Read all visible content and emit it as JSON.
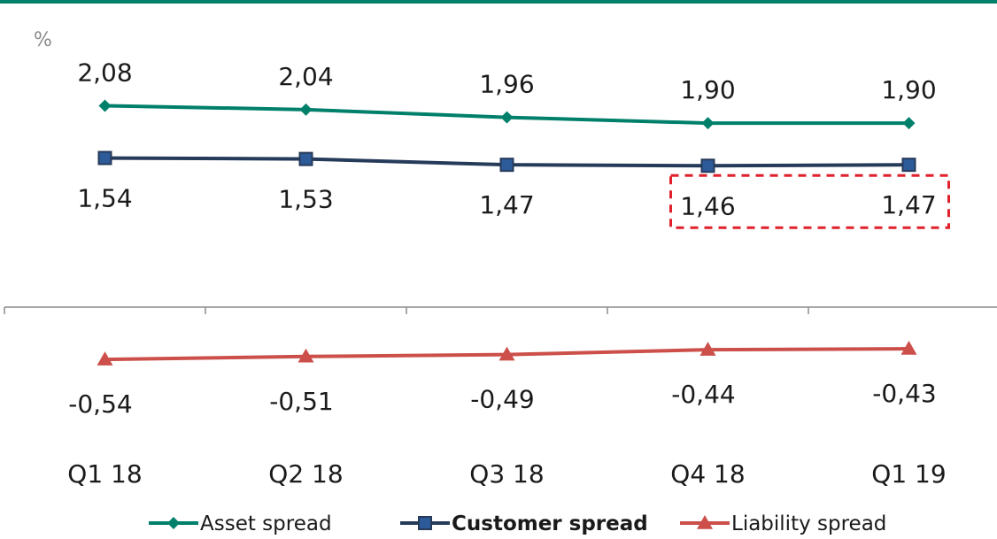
{
  "chart_data": {
    "type": "line",
    "unit_label": "%",
    "categories": [
      "Q1 18",
      "Q2 18",
      "Q3 18",
      "Q4 18",
      "Q1 19"
    ],
    "ylim": [
      -0.8,
      2.5
    ],
    "grid": false,
    "legend_position": "bottom",
    "series": [
      {
        "name": "Asset spread",
        "values": [
          2.08,
          2.04,
          1.96,
          1.9,
          1.9
        ],
        "labels": [
          "2,08",
          "2,04",
          "1,96",
          "1,90",
          "1,90"
        ],
        "color": "#00806a",
        "marker": "diamond",
        "label_position": "above"
      },
      {
        "name": "Customer spread",
        "values": [
          1.54,
          1.53,
          1.47,
          1.46,
          1.47
        ],
        "labels": [
          "1,54",
          "1,53",
          "1,47",
          "1,46",
          "1,47"
        ],
        "color": "#263a5a",
        "marker": "square",
        "label_position": "below",
        "bold_legend": true
      },
      {
        "name": "Liability spread",
        "values": [
          -0.54,
          -0.51,
          -0.49,
          -0.44,
          -0.43
        ],
        "labels": [
          "-0,54",
          "-0,51",
          "-0,49",
          "-0,44",
          "-0,43"
        ],
        "color": "#cc4f4a",
        "marker": "triangle",
        "label_position": "below"
      }
    ],
    "highlight": {
      "series": "Customer spread",
      "from_index": 3,
      "to_index": 4,
      "style": "dashed-box",
      "color": "#e0202a"
    },
    "top_rule_color": "#00806a"
  }
}
